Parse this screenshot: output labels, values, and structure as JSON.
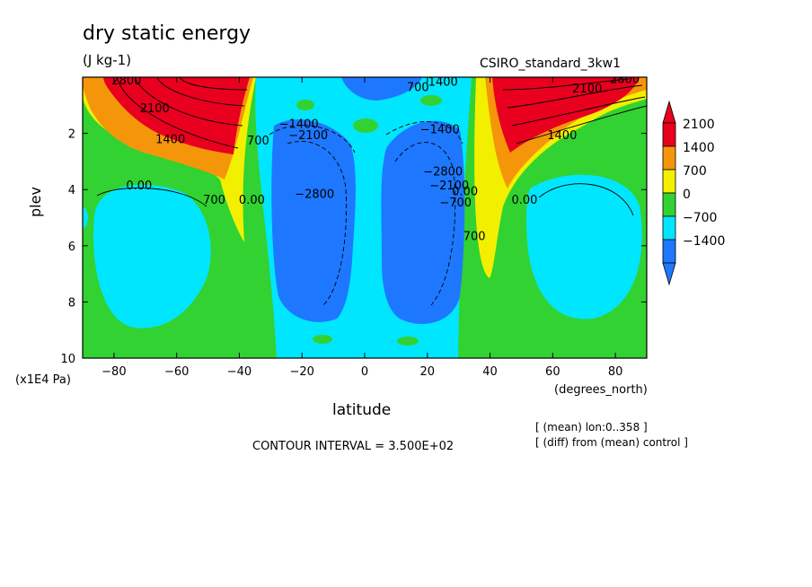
{
  "header": {
    "title": "dry static energy",
    "units": "(J kg-1)",
    "dataset": "CSIRO_standard_3kw1"
  },
  "footer": {
    "contour_interval": "CONTOUR INTERVAL = 3.500E+02",
    "note_mean": "[ (mean) lon:0..358 ]",
    "note_diff": "[ (diff) from (mean) control ]"
  },
  "chart_data": {
    "type": "heatmap",
    "title": "dry static energy",
    "subtitle": "(J kg-1)",
    "xlabel": "latitude",
    "xunit": "(degrees_north)",
    "ylabel": "plev",
    "yunit": "(x1E4 Pa)",
    "xlim": [
      -90,
      90
    ],
    "ylim": [
      10,
      0
    ],
    "x_ticks": [
      -80,
      -60,
      -40,
      -20,
      0,
      20,
      40,
      60,
      80
    ],
    "x_tick_labels": [
      "−80",
      "−60",
      "−40",
      "−20",
      "0",
      "20",
      "40",
      "60",
      "80"
    ],
    "y_ticks": [
      2,
      4,
      6,
      8,
      10
    ],
    "y_tick_labels": [
      "2",
      "4",
      "6",
      "8",
      "10"
    ],
    "colorbar": {
      "levels": [
        2100,
        1400,
        700,
        0,
        -700,
        -1400
      ],
      "labels": [
        "2100",
        "1400",
        "700",
        "0",
        "−700",
        "−1400"
      ],
      "colors": [
        "#e8001e",
        "#f5960a",
        "#f2f000",
        "#32d232",
        "#00e6ff",
        "#1e78ff"
      ],
      "over_color": "#e8001e",
      "under_color": "#1e78ff"
    },
    "regions": [
      {
        "name": "sh-subtropical-green",
        "value": 350,
        "color": "#32d232"
      },
      {
        "name": "nh-subtropical-green",
        "value": 350,
        "color": "#32d232"
      },
      {
        "name": "sh-jet-max",
        "value": 2800,
        "color": "#e8001e"
      },
      {
        "name": "nh-jet-max",
        "value": 2800,
        "color": "#e8001e"
      },
      {
        "name": "tropical-min-left",
        "value": -2800,
        "color": "#1e78ff"
      },
      {
        "name": "tropical-min-right",
        "value": -2800,
        "color": "#1e78ff"
      },
      {
        "name": "sh-high-lat-cyan",
        "value": -350,
        "color": "#00e6ff"
      },
      {
        "name": "nh-high-lat-cyan",
        "value": -350,
        "color": "#00e6ff"
      }
    ],
    "contour_labels": [
      {
        "text": "1400",
        "x": -62,
        "y": 2.35
      },
      {
        "text": "2100",
        "x": -67,
        "y": 1.25
      },
      {
        "text": "2800",
        "x": -76,
        "y": 0.25
      },
      {
        "text": "0.00",
        "x": -72,
        "y": 4.0
      },
      {
        "text": "700",
        "x": -48,
        "y": 4.5
      },
      {
        "text": "0.00",
        "x": -36,
        "y": 4.5
      },
      {
        "text": "700",
        "x": -34,
        "y": 2.4
      },
      {
        "text": "−1400",
        "x": -21,
        "y": 1.8
      },
      {
        "text": "−2100",
        "x": -18,
        "y": 2.2
      },
      {
        "text": "−2800",
        "x": -16,
        "y": 4.3
      },
      {
        "text": "700",
        "x": 17,
        "y": 0.5
      },
      {
        "text": "1400",
        "x": 25,
        "y": 0.3
      },
      {
        "text": "−1400",
        "x": 24,
        "y": 2.0
      },
      {
        "text": "−2800",
        "x": 25,
        "y": 3.5
      },
      {
        "text": "−2100",
        "x": 27,
        "y": 4.0
      },
      {
        "text": "−700",
        "x": 29,
        "y": 4.6
      },
      {
        "text": "0.00",
        "x": 32,
        "y": 4.2
      },
      {
        "text": "700",
        "x": 35,
        "y": 5.8
      },
      {
        "text": "2100",
        "x": 71,
        "y": 0.55
      },
      {
        "text": "2800",
        "x": 83,
        "y": 0.2
      },
      {
        "text": "1400",
        "x": 63,
        "y": 2.2
      },
      {
        "text": "0.00",
        "x": 51,
        "y": 4.5
      }
    ]
  }
}
